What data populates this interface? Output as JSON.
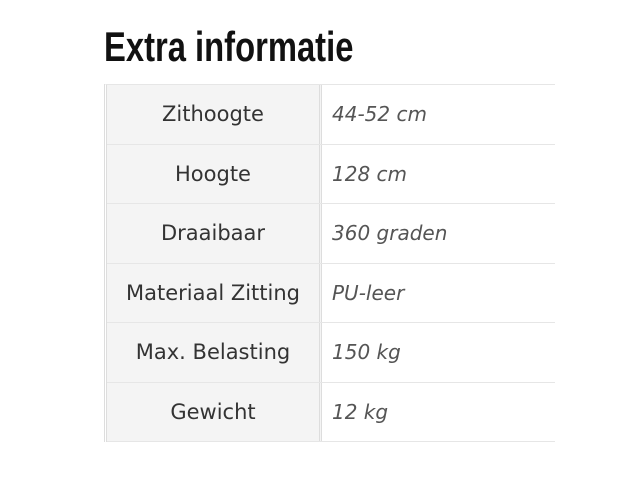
{
  "title": "Extra informatie",
  "rows": [
    {
      "label": "Zithoogte",
      "value": "44-52 cm"
    },
    {
      "label": "Hoogte",
      "value": "128 cm"
    },
    {
      "label": "Draaibaar",
      "value": "360 graden"
    },
    {
      "label": "Materiaal Zitting",
      "value": "PU-leer"
    },
    {
      "label": "Max. Belasting",
      "value": "150 kg"
    },
    {
      "label": "Gewicht",
      "value": "12 kg"
    }
  ]
}
